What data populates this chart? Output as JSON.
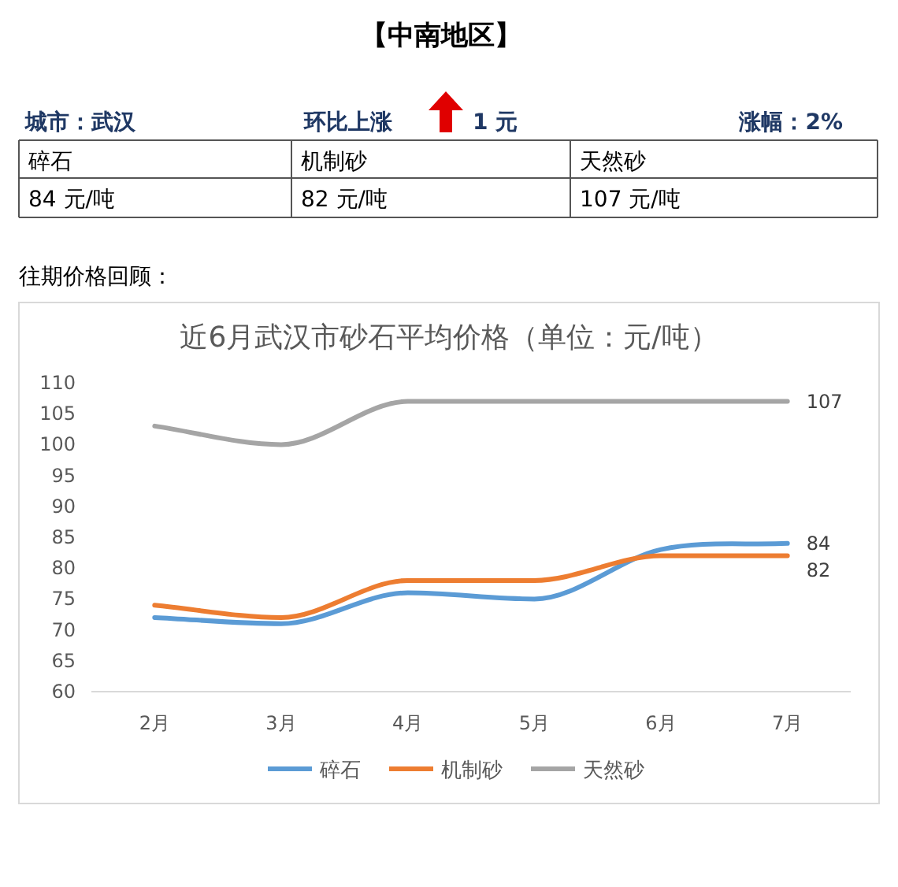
{
  "chart_data": [
    {
      "type": "other",
      "title": "【中南地区】",
      "annotations": [
        "城市：武汉",
        "环比上涨",
        "1 元",
        "涨幅：2%",
        "碎石",
        "机制砂",
        "天然砂",
        "84 元/吨",
        "82 元/吨",
        "107 元/吨",
        "往期价格回顾："
      ]
    },
    {
      "type": "line",
      "title": "近6月武汉市砂石平均价格（单位：元/吨）",
      "categories": [
        "2月",
        "3月",
        "4月",
        "5月",
        "6月",
        "7月"
      ],
      "ylim": [
        60,
        110
      ],
      "yticks": [
        60,
        65,
        70,
        75,
        80,
        85,
        90,
        95,
        100,
        105,
        110
      ],
      "legend": "bottom",
      "marker": "none",
      "line_style": "solid",
      "series": [
        {
          "name": "碎石",
          "color": "#5b9bd5",
          "values": [
            72,
            71,
            76,
            75,
            83,
            84
          ],
          "value_labels": [
            null,
            null,
            null,
            null,
            null,
            "84"
          ]
        },
        {
          "name": "机制砂",
          "color": "#ed7d31",
          "values": [
            74,
            72,
            78,
            78,
            82,
            82
          ],
          "value_labels": [
            null,
            null,
            null,
            null,
            null,
            "82"
          ]
        },
        {
          "name": "天然砂",
          "color": "#a5a5a5",
          "values": [
            103,
            100,
            107,
            107,
            107,
            107
          ],
          "value_labels": [
            null,
            null,
            null,
            null,
            null,
            "107"
          ]
        }
      ]
    }
  ]
}
